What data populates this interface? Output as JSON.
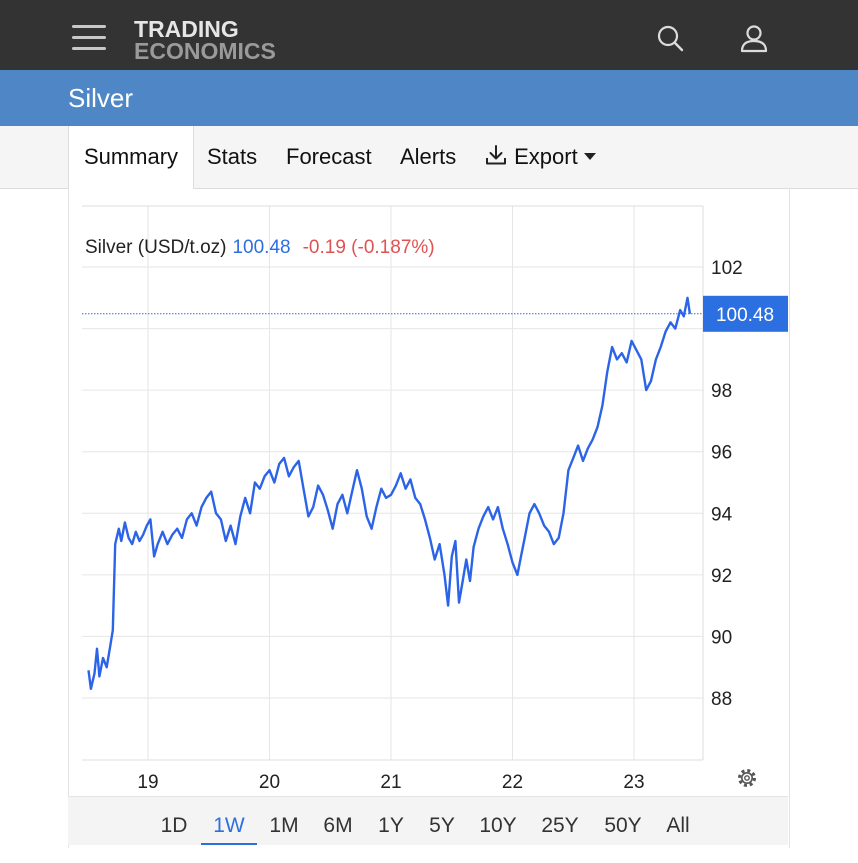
{
  "header": {
    "logo_line1": "TRADING",
    "logo_line2": "ECONOMICS",
    "menu_icon": "hamburger-menu-icon",
    "search_icon": "search-icon",
    "user_icon": "user-icon"
  },
  "page": {
    "title": "Silver"
  },
  "tabs": [
    {
      "label": "Summary",
      "active": true
    },
    {
      "label": "Stats"
    },
    {
      "label": "Forecast"
    },
    {
      "label": "Alerts"
    },
    {
      "label": "Export",
      "icon": "download-icon",
      "caret": "caret-down-icon"
    }
  ],
  "legend": {
    "name": "Silver (USD/t.oz)",
    "value": "100.48",
    "change": "-0.19 (-0.187%)",
    "value_color": "#2c6fe0",
    "change_color": "#e05252"
  },
  "last_price_label": "100.48",
  "settings_icon": "gear-icon",
  "ranges": [
    {
      "label": "1D"
    },
    {
      "label": "1W",
      "active": true
    },
    {
      "label": "1M"
    },
    {
      "label": "6M"
    },
    {
      "label": "1Y"
    },
    {
      "label": "5Y"
    },
    {
      "label": "10Y"
    },
    {
      "label": "25Y"
    },
    {
      "label": "50Y"
    },
    {
      "label": "All"
    }
  ],
  "colors": {
    "header_bg": "#333333",
    "title_bg": "#4f86c6",
    "line": "#2c64e8",
    "accent": "#2c6fe0",
    "negative": "#e05252"
  },
  "chart_data": {
    "type": "line",
    "ylim": [
      86,
      103.5
    ],
    "xlim": [
      18.5,
      23.55
    ],
    "y_ticks": [
      88,
      90,
      92,
      94,
      96,
      98,
      102
    ],
    "x_ticks": [
      19,
      20,
      21,
      22,
      23
    ],
    "x_tick_labels": [
      "19",
      "20",
      "21",
      "22",
      "23"
    ],
    "last_value": 100.48,
    "grid": true,
    "series": [
      {
        "values": [
          [
            18.51,
            88.9
          ],
          [
            18.53,
            88.3
          ],
          [
            18.56,
            88.8
          ],
          [
            18.58,
            89.6
          ],
          [
            18.6,
            88.7
          ],
          [
            18.63,
            89.3
          ],
          [
            18.66,
            89.0
          ],
          [
            18.69,
            89.7
          ],
          [
            18.71,
            90.2
          ],
          [
            18.73,
            93.0
          ],
          [
            18.76,
            93.5
          ],
          [
            18.78,
            93.1
          ],
          [
            18.81,
            93.7
          ],
          [
            18.84,
            93.2
          ],
          [
            18.87,
            93.0
          ],
          [
            18.9,
            93.4
          ],
          [
            18.93,
            93.1
          ],
          [
            18.96,
            93.3
          ],
          [
            18.99,
            93.6
          ],
          [
            19.02,
            93.8
          ],
          [
            19.05,
            92.6
          ],
          [
            19.08,
            93.0
          ],
          [
            19.12,
            93.4
          ],
          [
            19.16,
            93.0
          ],
          [
            19.2,
            93.3
          ],
          [
            19.24,
            93.5
          ],
          [
            19.28,
            93.2
          ],
          [
            19.32,
            93.8
          ],
          [
            19.36,
            94.0
          ],
          [
            19.4,
            93.6
          ],
          [
            19.44,
            94.2
          ],
          [
            19.48,
            94.5
          ],
          [
            19.52,
            94.7
          ],
          [
            19.56,
            94.0
          ],
          [
            19.6,
            93.8
          ],
          [
            19.64,
            93.1
          ],
          [
            19.68,
            93.6
          ],
          [
            19.72,
            93.0
          ],
          [
            19.76,
            93.9
          ],
          [
            19.8,
            94.5
          ],
          [
            19.84,
            94.0
          ],
          [
            19.88,
            95.0
          ],
          [
            19.92,
            94.8
          ],
          [
            19.96,
            95.2
          ],
          [
            20.0,
            95.4
          ],
          [
            20.04,
            95.0
          ],
          [
            20.08,
            95.6
          ],
          [
            20.12,
            95.8
          ],
          [
            20.16,
            95.2
          ],
          [
            20.2,
            95.5
          ],
          [
            20.24,
            95.7
          ],
          [
            20.28,
            94.8
          ],
          [
            20.32,
            93.9
          ],
          [
            20.36,
            94.2
          ],
          [
            20.4,
            94.9
          ],
          [
            20.44,
            94.6
          ],
          [
            20.48,
            94.1
          ],
          [
            20.52,
            93.5
          ],
          [
            20.56,
            94.3
          ],
          [
            20.6,
            94.6
          ],
          [
            20.64,
            94.0
          ],
          [
            20.68,
            94.7
          ],
          [
            20.72,
            95.4
          ],
          [
            20.76,
            94.8
          ],
          [
            20.8,
            93.9
          ],
          [
            20.84,
            93.5
          ],
          [
            20.88,
            94.2
          ],
          [
            20.92,
            94.8
          ],
          [
            20.96,
            94.5
          ],
          [
            21.0,
            94.6
          ],
          [
            21.04,
            94.9
          ],
          [
            21.08,
            95.3
          ],
          [
            21.12,
            94.8
          ],
          [
            21.16,
            95.1
          ],
          [
            21.2,
            94.5
          ],
          [
            21.24,
            94.3
          ],
          [
            21.28,
            93.8
          ],
          [
            21.32,
            93.2
          ],
          [
            21.36,
            92.5
          ],
          [
            21.4,
            93.0
          ],
          [
            21.44,
            92.0
          ],
          [
            21.47,
            91.0
          ],
          [
            21.5,
            92.6
          ],
          [
            21.53,
            93.1
          ],
          [
            21.56,
            91.1
          ],
          [
            21.59,
            91.8
          ],
          [
            21.62,
            92.5
          ],
          [
            21.65,
            91.8
          ],
          [
            21.68,
            92.9
          ],
          [
            21.72,
            93.5
          ],
          [
            21.76,
            93.9
          ],
          [
            21.8,
            94.2
          ],
          [
            21.84,
            93.8
          ],
          [
            21.88,
            94.2
          ],
          [
            21.92,
            93.5
          ],
          [
            21.96,
            93.0
          ],
          [
            22.0,
            92.4
          ],
          [
            22.04,
            92.0
          ],
          [
            22.07,
            92.6
          ],
          [
            22.1,
            93.2
          ],
          [
            22.14,
            94.0
          ],
          [
            22.18,
            94.3
          ],
          [
            22.22,
            94.0
          ],
          [
            22.26,
            93.6
          ],
          [
            22.3,
            93.4
          ],
          [
            22.34,
            93.0
          ],
          [
            22.38,
            93.2
          ],
          [
            22.42,
            94.0
          ],
          [
            22.46,
            95.4
          ],
          [
            22.5,
            95.8
          ],
          [
            22.54,
            96.2
          ],
          [
            22.58,
            95.7
          ],
          [
            22.62,
            96.1
          ],
          [
            22.66,
            96.4
          ],
          [
            22.7,
            96.8
          ],
          [
            22.74,
            97.5
          ],
          [
            22.78,
            98.6
          ],
          [
            22.82,
            99.4
          ],
          [
            22.86,
            99.0
          ],
          [
            22.9,
            99.2
          ],
          [
            22.94,
            98.9
          ],
          [
            22.98,
            99.6
          ],
          [
            23.02,
            99.3
          ],
          [
            23.06,
            99.0
          ],
          [
            23.1,
            98.0
          ],
          [
            23.14,
            98.3
          ],
          [
            23.18,
            99.0
          ],
          [
            23.22,
            99.4
          ],
          [
            23.26,
            99.9
          ],
          [
            23.3,
            100.2
          ],
          [
            23.34,
            100.0
          ],
          [
            23.38,
            100.6
          ],
          [
            23.41,
            100.4
          ],
          [
            23.44,
            101.0
          ],
          [
            23.46,
            100.48
          ]
        ]
      }
    ]
  }
}
